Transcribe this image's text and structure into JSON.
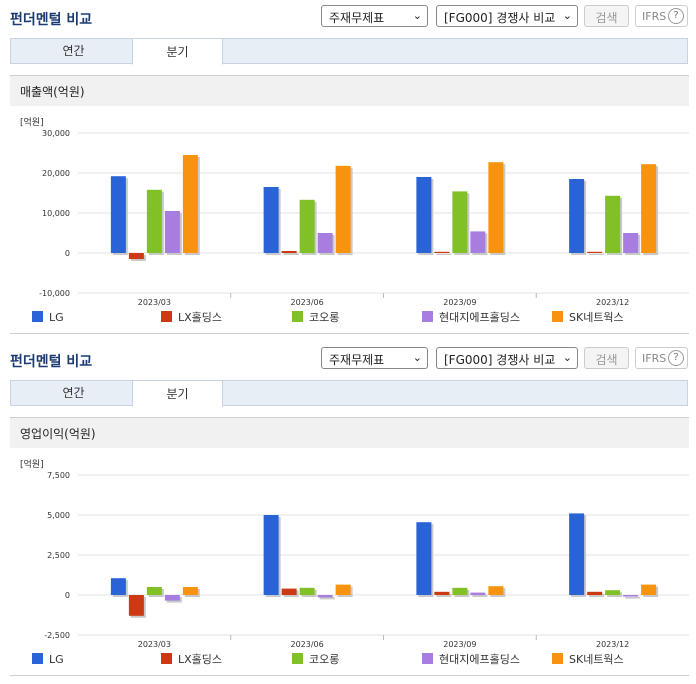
{
  "series_meta": [
    {
      "name": "LG",
      "color": "#2a63d6"
    },
    {
      "name": "LX홀딩스",
      "color": "#cc3a13"
    },
    {
      "name": "코오롱",
      "color": "#82c126"
    },
    {
      "name": "현대지에프홀딩스",
      "color": "#a77de0"
    },
    {
      "name": "SK네트웍스",
      "color": "#f7930e"
    }
  ],
  "panels": [
    {
      "header": {
        "title": "펀더멘털 비교",
        "statement_select": "주재무제표",
        "compare_select": "[FG000] 경쟁사 비교",
        "search_button": "검색",
        "ifrs_label": "IFRS",
        "help_icon": "?"
      },
      "tabs": [
        {
          "label": "연간",
          "active": false
        },
        {
          "label": "분기",
          "active": true
        }
      ],
      "chart_title": "매출액(억원)",
      "unit_label": "[억원]"
    },
    {
      "header": {
        "title": "펀더멘털 비교",
        "statement_select": "주재무제표",
        "compare_select": "[FG000] 경쟁사 비교",
        "search_button": "검색",
        "ifrs_label": "IFRS",
        "help_icon": "?"
      },
      "tabs": [
        {
          "label": "연간",
          "active": false
        },
        {
          "label": "분기",
          "active": true
        }
      ],
      "chart_title": "영업이익(억원)",
      "unit_label": "[억원]"
    }
  ],
  "chart_data": [
    {
      "type": "bar",
      "title": "매출액(억원)",
      "ylabel": "[억원]",
      "categories": [
        "2023/03",
        "2023/06",
        "2023/09",
        "2023/12"
      ],
      "ylim": [
        -10000,
        30000
      ],
      "yticks": [
        "-10,000",
        "0",
        "10,000",
        "20,000",
        "30,000"
      ],
      "ytick_values": [
        -10000,
        0,
        10000,
        20000,
        30000
      ],
      "grid": true,
      "legend_position": "bottom",
      "series": [
        {
          "name": "LG",
          "values": [
            19200,
            16500,
            19000,
            18500
          ]
        },
        {
          "name": "LX홀딩스",
          "values": [
            -1500,
            500,
            300,
            300
          ]
        },
        {
          "name": "코오롱",
          "values": [
            15800,
            13300,
            15400,
            14300
          ]
        },
        {
          "name": "현대지에프홀딩스",
          "values": [
            10500,
            5000,
            5400,
            5000
          ]
        },
        {
          "name": "SK네트웍스",
          "values": [
            24500,
            21800,
            22700,
            22200
          ]
        }
      ]
    },
    {
      "type": "bar",
      "title": "영업이익(억원)",
      "ylabel": "[억원]",
      "categories": [
        "2023/03",
        "2023/06",
        "2023/09",
        "2023/12"
      ],
      "ylim": [
        -2500,
        7500
      ],
      "yticks": [
        "-2,500",
        "0",
        "2,500",
        "5,000",
        "7,500"
      ],
      "ytick_values": [
        -2500,
        0,
        2500,
        5000,
        7500
      ],
      "grid": true,
      "legend_position": "bottom",
      "series": [
        {
          "name": "LG",
          "values": [
            1050,
            5000,
            4550,
            5100
          ]
        },
        {
          "name": "LX홀딩스",
          "values": [
            -1300,
            400,
            200,
            200
          ]
        },
        {
          "name": "코오롱",
          "values": [
            500,
            450,
            450,
            300
          ]
        },
        {
          "name": "현대지에프홀딩스",
          "values": [
            -350,
            -150,
            150,
            -100
          ]
        },
        {
          "name": "SK네트웍스",
          "values": [
            500,
            650,
            550,
            650
          ]
        }
      ]
    }
  ]
}
